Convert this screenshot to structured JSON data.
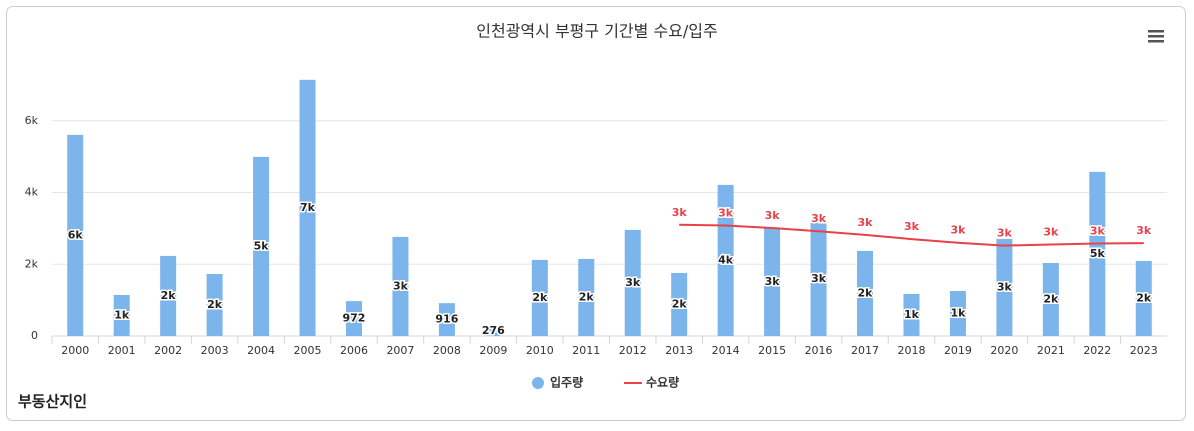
{
  "chart_data": {
    "type": "bar_line",
    "title": "인천광역시 부평구 기간별 수요/입주",
    "logo": "부동산지인",
    "categories": [
      "2000",
      "2001",
      "2002",
      "2003",
      "2004",
      "2005",
      "2006",
      "2007",
      "2008",
      "2009",
      "2010",
      "2011",
      "2012",
      "2013",
      "2014",
      "2015",
      "2016",
      "2017",
      "2018",
      "2019",
      "2020",
      "2021",
      "2022",
      "2023"
    ],
    "series": [
      {
        "name": "입주량",
        "type": "bar",
        "color": "#7cb5ec",
        "values": [
          5607,
          1144,
          2232,
          1729,
          4993,
          7141,
          972,
          2762,
          916,
          276,
          2120,
          2148,
          2957,
          1757,
          4212,
          3013,
          3180,
          2371,
          1172,
          1255,
          2706,
          2036,
          4575,
          2092
        ],
        "value_labels": [
          "6k",
          "1k",
          "2k",
          "2k",
          "5k",
          "7k",
          "972",
          "3k",
          "916",
          "276",
          "2k",
          "2k",
          "3k",
          "2k",
          "4k",
          "3k",
          "3k",
          "2k",
          "1k",
          "1k",
          "3k",
          "2k",
          "5k",
          "2k"
        ]
      },
      {
        "name": "수요량",
        "type": "line",
        "color": "#e8414a",
        "values": [
          null,
          null,
          null,
          null,
          null,
          null,
          null,
          null,
          null,
          null,
          null,
          null,
          null,
          3100,
          3080,
          3010,
          2920,
          2820,
          2700,
          2600,
          2520,
          2550,
          2580,
          2590
        ],
        "value_labels": [
          null,
          null,
          null,
          null,
          null,
          null,
          null,
          null,
          null,
          null,
          null,
          null,
          null,
          "3k",
          "3k",
          "3k",
          "3k",
          "3k",
          "3k",
          "3k",
          "3k",
          "3k",
          "3k",
          "3k"
        ]
      }
    ],
    "ylim": [
      0,
      8000
    ],
    "yticks": [
      0,
      {
        "value": 2000,
        "label": "2k"
      },
      {
        "value": 4000,
        "label": "4k"
      },
      {
        "value": 6000,
        "label": "6k"
      }
    ],
    "grid": true,
    "legend": "bottom"
  }
}
